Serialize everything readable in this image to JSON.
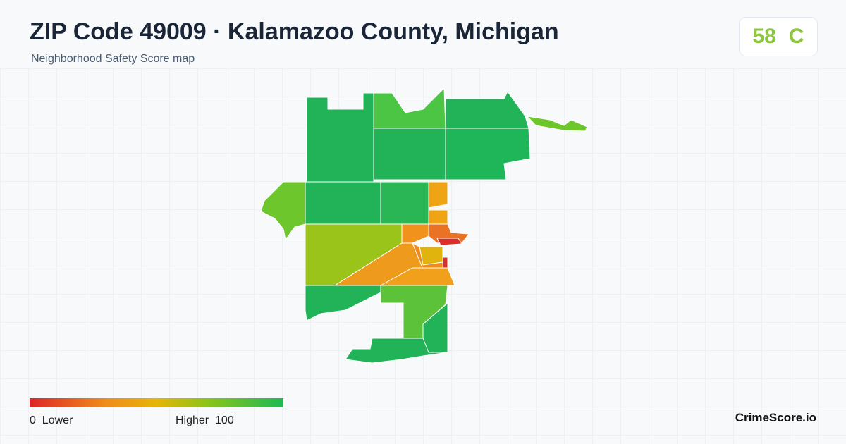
{
  "header": {
    "title": "ZIP Code 49009 · Kalamazoo County, Michigan",
    "subtitle": "Neighborhood Safety Score map",
    "score": 58,
    "grade": "C"
  },
  "legend": {
    "min": 0,
    "low_label": "Lower",
    "high_label": "Higher",
    "max": 100
  },
  "footer": {
    "brand": "CrimeScore.io"
  }
}
